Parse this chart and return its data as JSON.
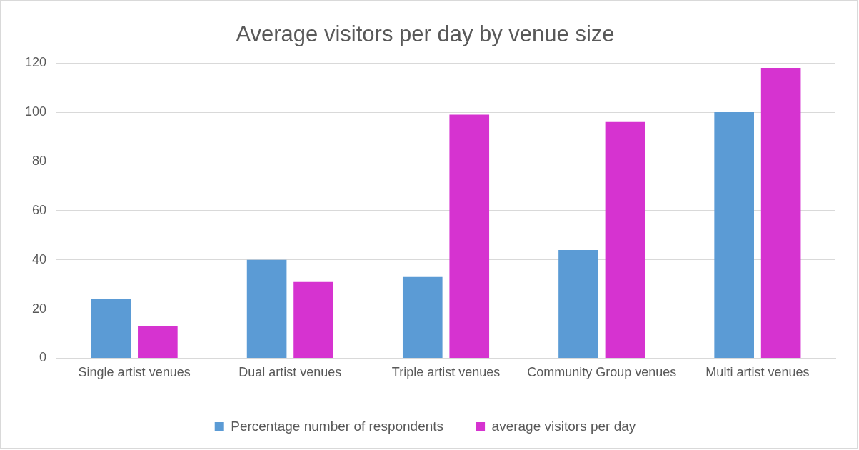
{
  "chart_data": {
    "type": "bar",
    "title": "Average visitors per day by venue size",
    "categories": [
      "Single artist venues",
      "Dual artist venues",
      "Triple artist venues",
      "Community Group venues",
      "Multi artist venues"
    ],
    "series": [
      {
        "name": "Percentage number of respondents",
        "color": "#5b9bd5",
        "values": [
          24,
          40,
          33,
          44,
          100
        ]
      },
      {
        "name": "average visitors per day",
        "color": "#d633d0",
        "values": [
          13,
          31,
          99,
          96,
          118
        ]
      }
    ],
    "ylim": [
      0,
      120
    ],
    "yticks": [
      0,
      20,
      40,
      60,
      80,
      100,
      120
    ],
    "grid": "y",
    "legend": "bottom"
  }
}
